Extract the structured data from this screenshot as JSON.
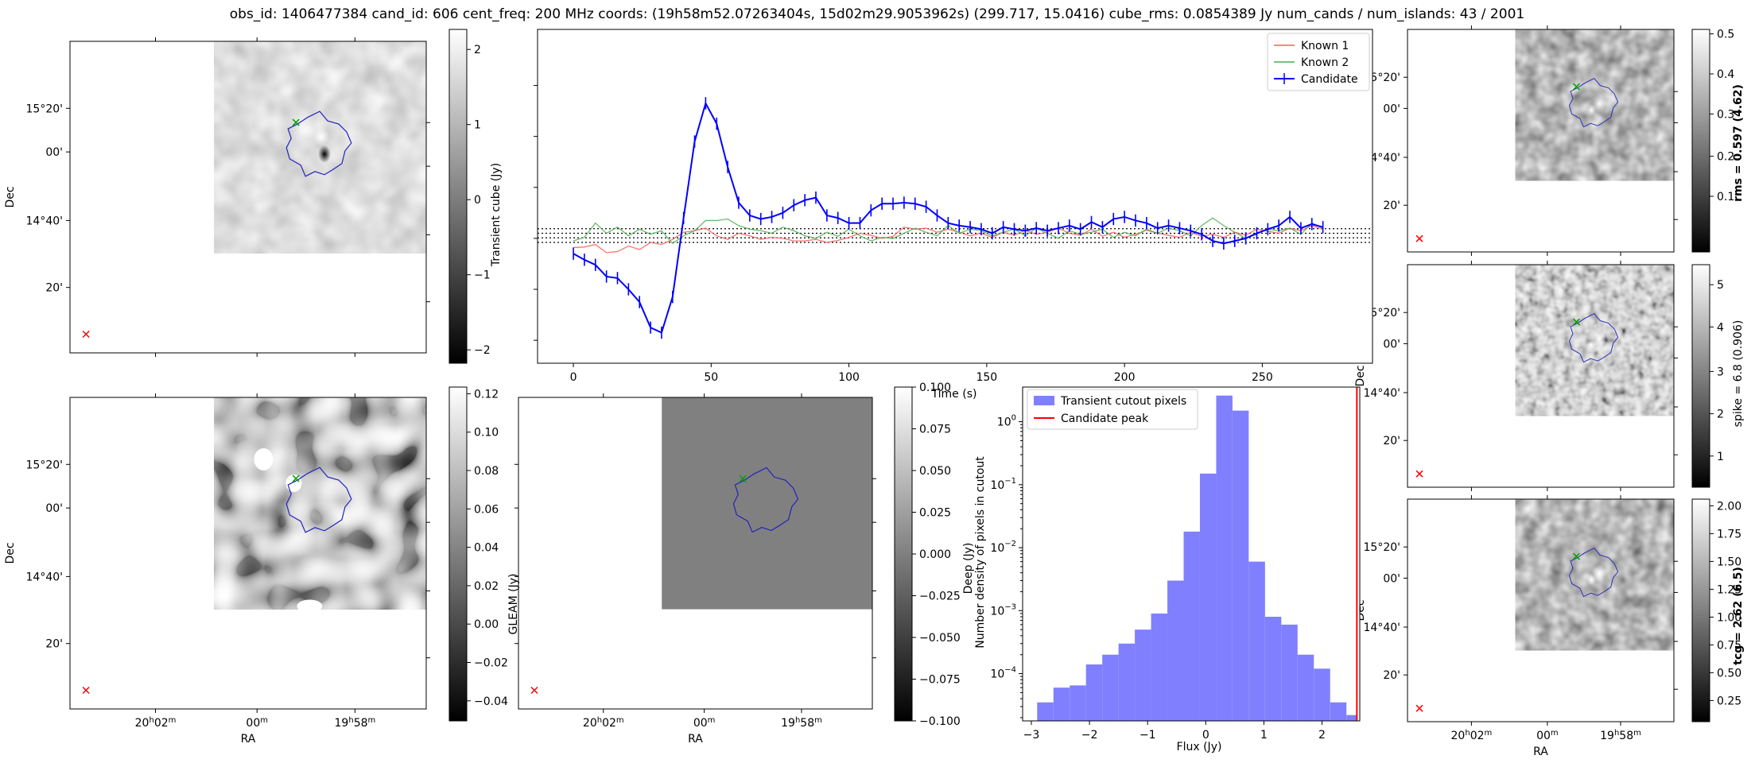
{
  "header": {
    "title": "obs_id: 1406477384 cand_id: 606 cent_freq: 200 MHz coords: (19h58m52.07263404s, 15d02m29.9053962s) (299.717, 15.0416) cube_rms: 0.0854389 Jy num_cands / num_islands: 43 / 2001"
  },
  "colors": {
    "candidate": "#0000ff",
    "known1": "#ff5a5a",
    "known2": "#4caf50",
    "histfill": "#8080ff",
    "peak": "#ff0000",
    "contour": "#2222bb",
    "marker_green": "#00a000",
    "marker_red": "#ff0000"
  },
  "sky_axes": {
    "ra_ticks": [
      "20h02m",
      "00m",
      "19h58m"
    ],
    "dec_ticks": [
      "15°20'",
      "00'",
      "14°40'",
      "20'"
    ],
    "ra_label": "RA",
    "dec_label": "Dec"
  },
  "panels": {
    "transient": {
      "cbar_label": "Transient cube (Jy)",
      "cbar_ticks": [
        "2",
        "1",
        "0",
        "−1",
        "−2"
      ]
    },
    "deep": {
      "cbar_label": "Deep (Jy)",
      "cbar_ticks": [
        "0.12",
        "0.10",
        "0.08",
        "0.06",
        "0.04",
        "0.02",
        "0.00",
        "−0.02",
        "−0.04"
      ]
    },
    "gleam": {
      "cbar_label": "GLEAM (Jy)",
      "cbar_ticks": [
        "0.100",
        "0.075",
        "0.050",
        "0.025",
        "0.000",
        "−0.025",
        "−0.050",
        "−0.075",
        "−0.100"
      ]
    },
    "rms": {
      "cbar_label": "rms = 0.597 (4.62)",
      "cbar_ticks": [
        "0.5",
        "0.4",
        "0.3",
        "0.2",
        "0.1"
      ]
    },
    "spike": {
      "cbar_label": "spike = 6.8 (0.906)",
      "cbar_ticks": [
        "5",
        "4",
        "3",
        "2",
        "1"
      ]
    },
    "tcg": {
      "cbar_label": "tcg = 2.62 (6.5)",
      "cbar_ticks": [
        "2.00",
        "1.75",
        "1.50",
        "1.25",
        "1.00",
        "0.75",
        "0.50",
        "0.25"
      ]
    }
  },
  "chart_data": [
    {
      "type": "line",
      "name": "lightcurve",
      "xlabel": "Time (s)",
      "ylabel": "",
      "xlim": [
        -13,
        290
      ],
      "ylim": [
        -2.45,
        4.1
      ],
      "xticks": [
        0,
        50,
        100,
        150,
        200,
        250
      ],
      "legend": [
        "Known 1",
        "Known 2",
        "Candidate"
      ],
      "legend_position": "top-right",
      "reference_lines": [
        0.19,
        0.1,
        0.01,
        -0.08
      ],
      "x": [
        0,
        4,
        8,
        12,
        16,
        20,
        24,
        28,
        32,
        36,
        40,
        44,
        48,
        52,
        56,
        60,
        64,
        68,
        72,
        76,
        80,
        84,
        88,
        92,
        96,
        100,
        104,
        108,
        112,
        116,
        120,
        124,
        128,
        132,
        136,
        140,
        144,
        148,
        152,
        156,
        160,
        164,
        168,
        172,
        176,
        180,
        184,
        188,
        192,
        196,
        200,
        204,
        208,
        212,
        216,
        220,
        224,
        228,
        232,
        236,
        240,
        244,
        248,
        252,
        256,
        260,
        264,
        268,
        272
      ],
      "series": [
        {
          "name": "Known 1",
          "color": "#ff5a5a",
          "values": [
            -0.18,
            -0.17,
            -0.12,
            -0.28,
            -0.26,
            -0.15,
            -0.22,
            -0.08,
            -0.12,
            -0.02,
            0.12,
            0.15,
            0.2,
            0.05,
            -0.02,
            0.1,
            0.05,
            -0.02,
            0.02,
            0.0,
            -0.05,
            -0.05,
            -0.02,
            -0.08,
            -0.04,
            0.02,
            0.1,
            0.06,
            0.0,
            0.04,
            0.22,
            0.18,
            0.2,
            0.12,
            0.18,
            0.12,
            0.05,
            0.1,
            0.02,
            0.12,
            0.06,
            0.16,
            0.08,
            0.12,
            0.2,
            0.1,
            0.06,
            0.18,
            0.04,
            0.12,
            0.02,
            0.08,
            0.16,
            0.1,
            0.06,
            0.02,
            0.12,
            0.04,
            0.08,
            0.02,
            0.12,
            0.06,
            0.18,
            0.14,
            0.1,
            0.2,
            0.15,
            0.25,
            0.18
          ]
        },
        {
          "name": "Known 2",
          "color": "#4caf50",
          "values": [
            -0.05,
            0.02,
            0.3,
            0.1,
            0.22,
            0.05,
            0.18,
            0.08,
            0.15,
            -0.1,
            0.05,
            0.15,
            0.35,
            0.35,
            0.38,
            0.25,
            0.18,
            0.15,
            0.1,
            0.22,
            0.15,
            0.05,
            0.0,
            0.12,
            0.04,
            0.18,
            0.05,
            -0.05,
            0.02,
            0.0,
            0.1,
            0.2,
            0.12,
            0.05,
            0.25,
            0.1,
            0.18,
            0.15,
            0.05,
            0.12,
            0.18,
            0.05,
            0.2,
            0.1,
            0.0,
            0.15,
            0.08,
            0.12,
            0.18,
            0.02,
            0.12,
            0.05,
            0.18,
            0.1,
            0.2,
            0.15,
            0.05,
            0.25,
            0.4,
            0.25,
            0.12,
            0.0,
            0.08,
            0.18,
            0.15,
            0.2,
            0.08,
            0.3,
            0.2
          ]
        },
        {
          "name": "Candidate",
          "color": "#0000ff",
          "err": 0.12,
          "values": [
            -0.3,
            -0.42,
            -0.52,
            -0.75,
            -0.78,
            -1.0,
            -1.25,
            -1.75,
            -1.85,
            -1.15,
            0.4,
            1.9,
            2.65,
            2.25,
            1.4,
            0.7,
            0.45,
            0.38,
            0.42,
            0.5,
            0.65,
            0.75,
            0.8,
            0.45,
            0.4,
            0.3,
            0.3,
            0.55,
            0.68,
            0.68,
            0.7,
            0.68,
            0.62,
            0.45,
            0.3,
            0.25,
            0.22,
            0.18,
            0.1,
            0.22,
            0.18,
            0.15,
            0.2,
            0.15,
            0.2,
            0.25,
            0.18,
            0.32,
            0.22,
            0.38,
            0.42,
            0.35,
            0.3,
            0.2,
            0.25,
            0.2,
            0.15,
            0.08,
            -0.05,
            -0.1,
            -0.05,
            0.0,
            0.1,
            0.18,
            0.25,
            0.42,
            0.2,
            0.28,
            0.22
          ]
        }
      ]
    },
    {
      "type": "bar",
      "name": "histogram",
      "xlabel": "Flux (Jy)",
      "ylabel": "Number density of pixels in cutout",
      "yscale": "log",
      "xlim": [
        -3.15,
        2.65
      ],
      "ylim_exp": [
        -4.75,
        0.55
      ],
      "xticks": [
        -3,
        -2,
        -1,
        0,
        1,
        2
      ],
      "ytick_exps": [
        0,
        -1,
        -2,
        -3,
        -4
      ],
      "legend": [
        "Transient cutout pixels",
        "Candidate peak"
      ],
      "legend_position": "top-left",
      "bin_edges": [
        -2.9,
        -2.62,
        -2.34,
        -2.06,
        -1.78,
        -1.5,
        -1.22,
        -0.94,
        -0.66,
        -0.38,
        -0.1,
        0.18,
        0.46,
        0.74,
        1.02,
        1.3,
        1.58,
        1.86,
        2.14,
        2.42,
        2.6
      ],
      "values": [
        3.5e-05,
        6e-05,
        6.5e-05,
        0.00014,
        0.0002,
        0.0003,
        0.0005,
        0.0009,
        0.003,
        0.018,
        0.15,
        2.6,
        1.5,
        0.006,
        0.0008,
        0.0006,
        0.0002,
        0.00012,
        3.5e-05,
        2.2e-05
      ],
      "candidate_peak": 2.6
    }
  ]
}
